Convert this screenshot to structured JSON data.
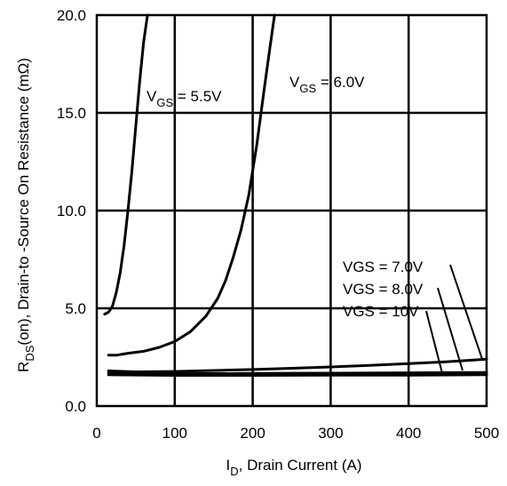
{
  "chart_data": {
    "type": "line",
    "xlabel": {
      "main": "I",
      "sub": "D",
      "rest": ", Drain Current (A)"
    },
    "ylabel": {
      "main": "R",
      "sub": "DS",
      "rest": "(on),  Drain-to -Source On Resistance (mΩ)"
    },
    "xlim": [
      0,
      500
    ],
    "ylim": [
      0,
      20
    ],
    "x_ticks": [
      0,
      100,
      200,
      300,
      400,
      500
    ],
    "x_tick_labels": [
      "0",
      "100",
      "200",
      "300",
      "400",
      "500"
    ],
    "y_ticks": [
      0,
      5,
      10,
      15,
      20
    ],
    "y_tick_labels": [
      "0.0",
      "5.0",
      "10.0",
      "15.0",
      "20.0"
    ],
    "grid": true,
    "series": [
      {
        "name": "VGS = 5.5V",
        "x": [
          10,
          15,
          20,
          25,
          30,
          35,
          40,
          45,
          50,
          55,
          60,
          65
        ],
        "y": [
          4.7,
          4.8,
          5.1,
          5.8,
          6.8,
          8.2,
          10.0,
          12.0,
          14.3,
          16.6,
          18.6,
          20.0
        ]
      },
      {
        "name": "VGS = 6.0V",
        "x": [
          15,
          25,
          40,
          60,
          80,
          100,
          120,
          140,
          155,
          165,
          175,
          185,
          195,
          205,
          215,
          222,
          228
        ],
        "y": [
          2.6,
          2.6,
          2.7,
          2.8,
          3.0,
          3.3,
          3.8,
          4.6,
          5.5,
          6.4,
          7.6,
          9.0,
          10.8,
          13.3,
          16.3,
          18.3,
          20.0
        ]
      },
      {
        "name": "VGS = 7.0V",
        "x": [
          15,
          50,
          100,
          150,
          200,
          250,
          300,
          350,
          400,
          450,
          500
        ],
        "y": [
          1.8,
          1.75,
          1.77,
          1.82,
          1.87,
          1.93,
          2.0,
          2.08,
          2.17,
          2.27,
          2.4
        ]
      },
      {
        "name": "VGS = 8.0V",
        "x": [
          15,
          100,
          200,
          300,
          400,
          500
        ],
        "y": [
          1.7,
          1.65,
          1.67,
          1.68,
          1.7,
          1.72
        ]
      },
      {
        "name": "VGS = 10V",
        "x": [
          15,
          100,
          200,
          300,
          400,
          500
        ],
        "y": [
          1.6,
          1.57,
          1.57,
          1.58,
          1.58,
          1.6
        ]
      }
    ],
    "annotations": [
      {
        "main": "V",
        "sub": "GS",
        "rest": " = 5.5V"
      },
      {
        "main": "V",
        "sub": "GS",
        "rest": " = 6.0V"
      },
      {
        "main": "VGS = 7.0V",
        "sub": "",
        "rest": ""
      },
      {
        "main": "VGS = 8.0V",
        "sub": "",
        "rest": ""
      },
      {
        "main": "VGS = 10V",
        "sub": "",
        "rest": ""
      }
    ]
  }
}
